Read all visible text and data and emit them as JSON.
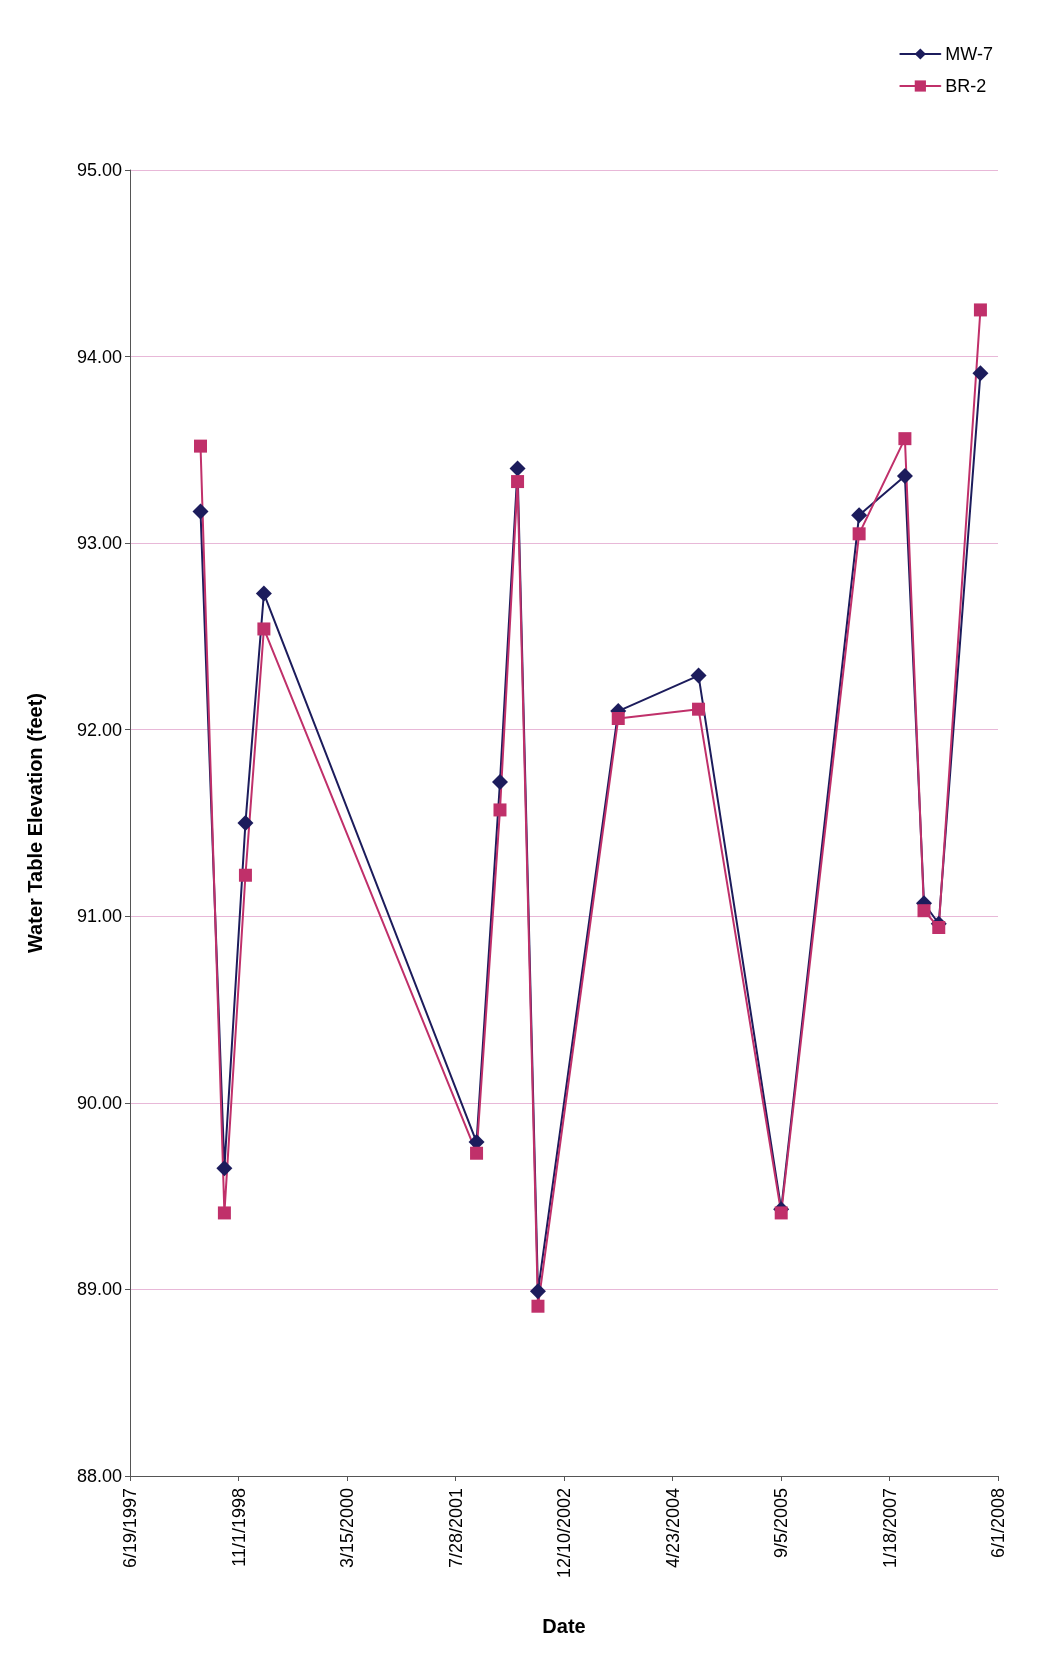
{
  "chart_data": {
    "type": "line",
    "xlabel": "Date",
    "ylabel": "Water Table Elevation (feet)",
    "x": [
      "1998-05-10",
      "1998-08-28",
      "1998-12-03",
      "1999-02-26",
      "2001-11-02",
      "2002-02-18",
      "2002-05-10",
      "2002-08-12",
      "2003-08-17",
      "2004-08-21",
      "2005-09-06",
      "2006-08-31",
      "2007-03-30",
      "2007-06-26",
      "2007-09-02",
      "2008-03-12"
    ],
    "series": [
      {
        "name": "MW-7",
        "color": "#1c1c5c",
        "marker": "diamond",
        "values": [
          93.17,
          89.65,
          91.5,
          92.73,
          89.79,
          91.72,
          93.4,
          88.99,
          92.1,
          92.29,
          89.43,
          93.15,
          93.36,
          91.07,
          90.96,
          93.91
        ]
      },
      {
        "name": "BR-2",
        "color": "#c0306a",
        "marker": "square",
        "values": [
          93.52,
          89.41,
          91.22,
          92.54,
          89.73,
          91.57,
          93.33,
          88.91,
          92.06,
          92.11,
          89.41,
          93.05,
          93.56,
          91.03,
          90.94,
          94.25
        ]
      }
    ],
    "xlim": [
      "1997-06-19",
      "2008-06-01"
    ],
    "xticks": [
      {
        "value": "1997-06-19",
        "label": "6/19/1997"
      },
      {
        "value": "1998-11-01",
        "label": "11/1/1998"
      },
      {
        "value": "2000-03-15",
        "label": "3/15/2000"
      },
      {
        "value": "2001-07-28",
        "label": "7/28/2001"
      },
      {
        "value": "2002-12-10",
        "label": "12/10/2002"
      },
      {
        "value": "2004-04-23",
        "label": "4/23/2004"
      },
      {
        "value": "2005-09-05",
        "label": "9/5/2005"
      },
      {
        "value": "2007-01-18",
        "label": "1/18/2007"
      },
      {
        "value": "2008-06-01",
        "label": "6/1/2008"
      }
    ],
    "ylim": [
      88,
      95
    ],
    "yticks": [
      {
        "value": 88,
        "label": "88.00"
      },
      {
        "value": 89,
        "label": "89.00"
      },
      {
        "value": 90,
        "label": "90.00"
      },
      {
        "value": 91,
        "label": "91.00"
      },
      {
        "value": 92,
        "label": "92.00"
      },
      {
        "value": 93,
        "label": "93.00"
      },
      {
        "value": 94,
        "label": "94.00"
      },
      {
        "value": 95,
        "label": "95.00"
      }
    ],
    "grid": "y",
    "legend": "top right",
    "line_style": "solid"
  }
}
